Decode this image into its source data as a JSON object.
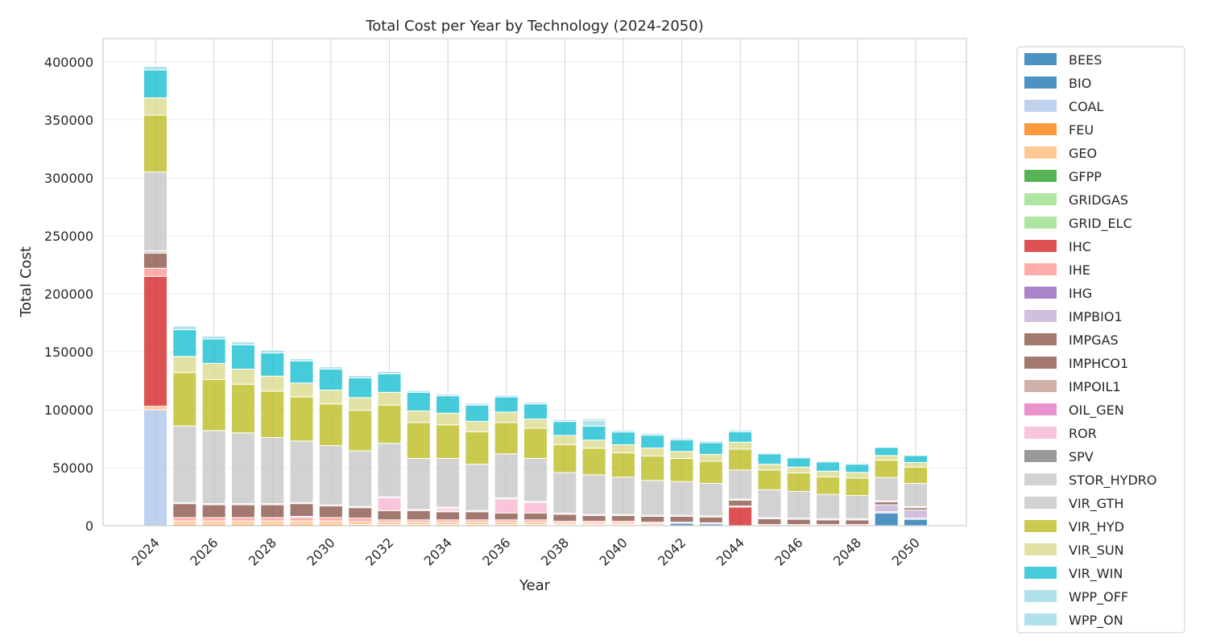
{
  "chart_data": {
    "type": "bar",
    "stacked": true,
    "title": "Total Cost per Year by Technology (2024-2050)",
    "xlabel": "Year",
    "ylabel": "Total Cost",
    "ylim": [
      0,
      420000
    ],
    "yticks": [
      0,
      50000,
      100000,
      150000,
      200000,
      250000,
      300000,
      350000,
      400000
    ],
    "xticks": [
      "2024",
      "2026",
      "2028",
      "2030",
      "2032",
      "2034",
      "2036",
      "2038",
      "2040",
      "2042",
      "2044",
      "2046",
      "2048",
      "2050"
    ],
    "grid": true,
    "legend_position": "outside-right",
    "categories": [
      "2024",
      "2025",
      "2026",
      "2027",
      "2028",
      "2029",
      "2030",
      "2031",
      "2032",
      "2033",
      "2034",
      "2035",
      "2036",
      "2037",
      "2038",
      "2039",
      "2040",
      "2041",
      "2042",
      "2043",
      "2044",
      "2045",
      "2046",
      "2047",
      "2048",
      "2049",
      "2050"
    ],
    "series": [
      {
        "name": "BEES",
        "color": "#1f77b4",
        "values": [
          0,
          0,
          0,
          0,
          0,
          0,
          0,
          0,
          0,
          0,
          0,
          0,
          0,
          0,
          0,
          0,
          0,
          0,
          2000,
          1500,
          0,
          0,
          0,
          0,
          0,
          11000,
          5500
        ]
      },
      {
        "name": "BIO",
        "color": "#1f77b4",
        "values": [
          0,
          0,
          0,
          0,
          0,
          0,
          0,
          0,
          0,
          0,
          0,
          0,
          0,
          0,
          0,
          0,
          0,
          0,
          0,
          0,
          0,
          0,
          0,
          0,
          0,
          0,
          0
        ]
      },
      {
        "name": "COAL",
        "color": "#aec7e8",
        "values": [
          100000,
          0,
          0,
          0,
          0,
          0,
          0,
          0,
          0,
          0,
          0,
          0,
          0,
          0,
          0,
          0,
          0,
          0,
          0,
          0,
          0,
          0,
          0,
          0,
          0,
          0,
          0
        ]
      },
      {
        "name": "FEU",
        "color": "#ff7f0e",
        "values": [
          0,
          1500,
          1500,
          1500,
          1500,
          1500,
          1500,
          1000,
          1000,
          1000,
          1000,
          1000,
          1000,
          1000,
          800,
          800,
          800,
          500,
          0,
          0,
          0,
          0,
          0,
          0,
          0,
          0,
          0
        ]
      },
      {
        "name": "GEO",
        "color": "#ffbb78",
        "values": [
          3000,
          2500,
          2500,
          2500,
          2500,
          2500,
          2500,
          2500,
          2000,
          2000,
          2000,
          2000,
          2000,
          2000,
          1500,
          1500,
          1500,
          1500,
          0,
          0,
          0,
          0,
          0,
          0,
          0,
          0,
          0
        ]
      },
      {
        "name": "GFPP",
        "color": "#2ca02c",
        "values": [
          0,
          0,
          0,
          0,
          0,
          0,
          0,
          0,
          0,
          0,
          0,
          0,
          0,
          0,
          0,
          0,
          0,
          0,
          0,
          0,
          0,
          0,
          0,
          0,
          0,
          0,
          0
        ]
      },
      {
        "name": "GRIDGAS",
        "color": "#98df8a",
        "values": [
          0,
          0,
          0,
          0,
          0,
          0,
          0,
          0,
          0,
          0,
          0,
          0,
          0,
          0,
          0,
          0,
          0,
          0,
          0,
          0,
          0,
          0,
          0,
          0,
          0,
          0,
          0
        ]
      },
      {
        "name": "GRID_ELC",
        "color": "#98df8a",
        "values": [
          0,
          0,
          0,
          0,
          0,
          0,
          0,
          0,
          0,
          0,
          0,
          0,
          0,
          0,
          0,
          0,
          0,
          0,
          0,
          0,
          0,
          0,
          0,
          0,
          0,
          0,
          0
        ]
      },
      {
        "name": "IHC",
        "color": "#d62728",
        "values": [
          112000,
          0,
          0,
          0,
          0,
          0,
          0,
          0,
          0,
          0,
          0,
          0,
          0,
          0,
          0,
          0,
          0,
          0,
          0,
          0,
          16000,
          0,
          0,
          0,
          0,
          0,
          0
        ]
      },
      {
        "name": "IHE",
        "color": "#ff9896",
        "values": [
          7000,
          3000,
          3000,
          3000,
          3000,
          3000,
          3000,
          3000,
          2000,
          2000,
          2000,
          2000,
          2000,
          2000,
          1500,
          1500,
          1500,
          1000,
          1000,
          1000,
          1000,
          1000,
          1000,
          1000,
          1000,
          1000,
          1000
        ]
      },
      {
        "name": "IHG",
        "color": "#9467bd",
        "values": [
          0,
          0,
          0,
          0,
          0,
          0,
          0,
          0,
          0,
          0,
          0,
          0,
          0,
          0,
          0,
          0,
          0,
          0,
          0,
          0,
          0,
          0,
          0,
          0,
          0,
          0,
          0
        ]
      },
      {
        "name": "IMPBIO1",
        "color": "#c5b0d5",
        "values": [
          0,
          0,
          0,
          0,
          0,
          1000,
          0,
          0,
          0,
          0,
          0,
          0,
          0,
          0,
          0,
          0,
          0,
          0,
          0,
          0,
          0,
          0,
          0,
          0,
          0,
          6000,
          7000
        ]
      },
      {
        "name": "IMPGAS",
        "color": "#8c564b",
        "values": [
          0,
          0,
          0,
          0,
          0,
          0,
          0,
          0,
          0,
          0,
          0,
          0,
          0,
          0,
          0,
          0,
          0,
          0,
          0,
          0,
          0,
          0,
          0,
          0,
          0,
          0,
          0
        ]
      },
      {
        "name": "IMPHCO1",
        "color": "#8c564b",
        "values": [
          13000,
          12000,
          11000,
          11000,
          11000,
          11000,
          10000,
          9000,
          8000,
          8000,
          7000,
          7000,
          6000,
          6000,
          6000,
          5000,
          5000,
          5000,
          5000,
          5000,
          5000,
          5000,
          4500,
          4000,
          4000,
          2500,
          2000
        ]
      },
      {
        "name": "IMPOIL1",
        "color": "#c49c94",
        "values": [
          0,
          0,
          0,
          0,
          0,
          0,
          0,
          0,
          0,
          0,
          0,
          0,
          0,
          0,
          0,
          0,
          0,
          0,
          0,
          0,
          0,
          0,
          0,
          0,
          0,
          0,
          0
        ]
      },
      {
        "name": "OIL_GEN",
        "color": "#e377c2",
        "values": [
          0,
          0,
          0,
          0,
          0,
          0,
          0,
          0,
          0,
          0,
          1000,
          0,
          0,
          0,
          0,
          0,
          0,
          0,
          0,
          0,
          0,
          0,
          0,
          0,
          0,
          0,
          0
        ]
      },
      {
        "name": "ROR",
        "color": "#f7b6d2",
        "values": [
          0,
          0,
          0,
          0,
          0,
          0,
          0,
          0,
          11000,
          0,
          2000,
          0,
          12000,
          9000,
          0,
          0,
          0,
          0,
          0,
          0,
          0,
          0,
          0,
          0,
          0,
          0,
          0
        ]
      },
      {
        "name": "SPV",
        "color": "#7f7f7f",
        "values": [
          0,
          0,
          0,
          0,
          0,
          0,
          0,
          0,
          0,
          0,
          0,
          0,
          0,
          0,
          0,
          0,
          0,
          0,
          0,
          0,
          0,
          0,
          0,
          0,
          0,
          0,
          0
        ]
      },
      {
        "name": "STOR_HYDRO",
        "color": "#c7c7c7",
        "values": [
          2000,
          1000,
          1000,
          1000,
          1000,
          1000,
          1000,
          1000,
          1000,
          1000,
          1000,
          1000,
          1000,
          1000,
          1000,
          1000,
          1000,
          1000,
          1000,
          1000,
          1000,
          1000,
          1000,
          1000,
          1000,
          1000,
          1000
        ]
      },
      {
        "name": "VIR_GTH",
        "color": "#c7c7c7",
        "values": [
          68000,
          66000,
          63000,
          61000,
          57000,
          53000,
          51000,
          48000,
          46000,
          44000,
          42000,
          40000,
          38000,
          37000,
          35000,
          34000,
          32000,
          30000,
          29000,
          28000,
          25000,
          24000,
          23000,
          21000,
          20000,
          20000,
          20000
        ]
      },
      {
        "name": "VIR_HYD",
        "color": "#bcbd22",
        "values": [
          49000,
          46000,
          44000,
          42000,
          40000,
          38000,
          36000,
          35000,
          33000,
          31000,
          29000,
          28000,
          27000,
          26000,
          24000,
          23000,
          21000,
          21000,
          20000,
          19000,
          18000,
          17000,
          16000,
          15000,
          15000,
          15000,
          14000
        ]
      },
      {
        "name": "VIR_SUN",
        "color": "#dbdb8d",
        "values": [
          15000,
          14000,
          14000,
          13000,
          13000,
          12000,
          12000,
          11000,
          11000,
          10000,
          10000,
          9000,
          9000,
          8000,
          8000,
          7000,
          7000,
          7000,
          6000,
          6000,
          6000,
          5000,
          5000,
          5000,
          5000,
          4000,
          4000
        ]
      },
      {
        "name": "VIR_WIN",
        "color": "#17becf",
        "values": [
          24000,
          23000,
          21000,
          21000,
          20000,
          19000,
          18000,
          17000,
          16000,
          16000,
          15000,
          14000,
          13000,
          13000,
          12000,
          12000,
          11000,
          11000,
          10000,
          10000,
          9000,
          9000,
          8000,
          8000,
          7000,
          7000,
          6000
        ]
      },
      {
        "name": "WPP_OFF",
        "color": "#9edae5",
        "values": [
          0,
          0,
          0,
          0,
          0,
          0,
          0,
          0,
          0,
          0,
          0,
          0,
          0,
          0,
          0,
          5000,
          0,
          0,
          0,
          0,
          0,
          0,
          0,
          0,
          0,
          0,
          0
        ]
      },
      {
        "name": "WPP_ON",
        "color": "#9edae5",
        "values": [
          3000,
          3000,
          2500,
          2500,
          2500,
          2000,
          2000,
          2000,
          2000,
          1500,
          1500,
          1500,
          1500,
          1500,
          1500,
          1500,
          1500,
          1500,
          1500,
          1500,
          1500,
          1000,
          1000,
          1000,
          1000,
          0,
          0
        ]
      }
    ]
  }
}
